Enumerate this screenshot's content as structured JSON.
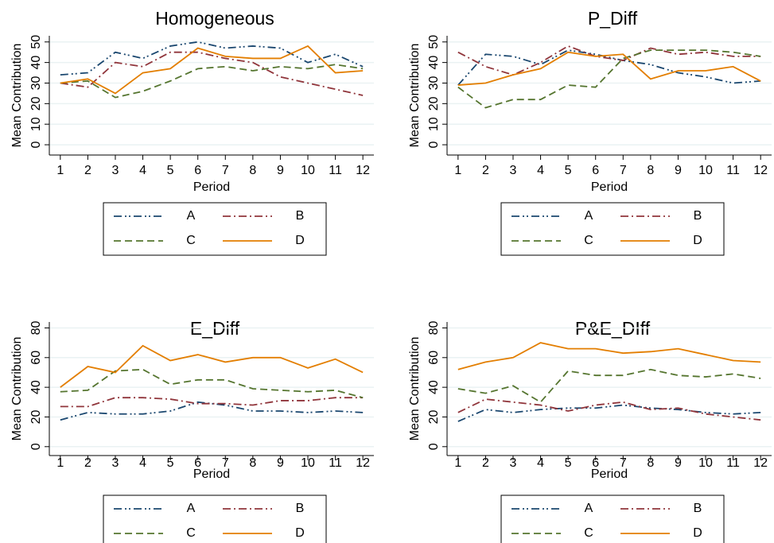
{
  "chart_data": [
    {
      "type": "line",
      "title": "Homogeneous",
      "x_label": "Period",
      "y_label": "Mean Contribution",
      "x": [
        1,
        2,
        3,
        4,
        5,
        6,
        7,
        8,
        9,
        10,
        11,
        12
      ],
      "xlim": [
        0.6,
        12.4
      ],
      "xticks": [
        1,
        2,
        3,
        4,
        5,
        6,
        7,
        8,
        9,
        10,
        11,
        12
      ],
      "ylim": [
        -5,
        53
      ],
      "yticks": [
        0,
        10,
        20,
        30,
        40,
        50
      ],
      "grid": true,
      "legend_position": "bottom",
      "series": [
        {
          "name": "A",
          "color": "#1a476f",
          "values": [
            34,
            35,
            45,
            42,
            48,
            50,
            47,
            48,
            47,
            40,
            44,
            38
          ]
        },
        {
          "name": "B",
          "color": "#90353b",
          "values": [
            30,
            28,
            40,
            38,
            45,
            45,
            42,
            40,
            33,
            30,
            27,
            24
          ]
        },
        {
          "name": "C",
          "color": "#55752f",
          "values": [
            30,
            31,
            23,
            26,
            31,
            37,
            38,
            36,
            38,
            37,
            39,
            37
          ]
        },
        {
          "name": "D",
          "color": "#e37e00",
          "values": [
            30,
            32,
            25,
            35,
            37,
            47,
            43,
            42,
            42,
            48,
            35,
            36
          ]
        }
      ]
    },
    {
      "type": "line",
      "title": "P_Diff",
      "x_label": "Period",
      "y_label": "Mean Contribution",
      "x": [
        1,
        2,
        3,
        4,
        5,
        6,
        7,
        8,
        9,
        10,
        11,
        12
      ],
      "xlim": [
        0.6,
        12.4
      ],
      "xticks": [
        1,
        2,
        3,
        4,
        5,
        6,
        7,
        8,
        9,
        10,
        11,
        12
      ],
      "ylim": [
        -5,
        53
      ],
      "yticks": [
        0,
        10,
        20,
        30,
        40,
        50
      ],
      "grid": true,
      "legend_position": "bottom",
      "series": [
        {
          "name": "A",
          "color": "#1a476f",
          "values": [
            29,
            44,
            43,
            39,
            46,
            44,
            41,
            39,
            35,
            33,
            30,
            31
          ]
        },
        {
          "name": "B",
          "color": "#90353b",
          "values": [
            45,
            38,
            34,
            40,
            48,
            43,
            41,
            47,
            44,
            45,
            43,
            43
          ]
        },
        {
          "name": "C",
          "color": "#55752f",
          "values": [
            28,
            18,
            22,
            22,
            29,
            28,
            42,
            46,
            46,
            46,
            45,
            43
          ]
        },
        {
          "name": "D",
          "color": "#e37e00",
          "values": [
            29,
            30,
            34,
            37,
            45,
            43,
            44,
            32,
            36,
            36,
            38,
            31
          ]
        }
      ]
    },
    {
      "type": "line",
      "title": "E_Diff",
      "x_label": "Period",
      "y_label": "Mean Contribution",
      "x": [
        1,
        2,
        3,
        4,
        5,
        6,
        7,
        8,
        9,
        10,
        11,
        12
      ],
      "xlim": [
        0.6,
        12.4
      ],
      "xticks": [
        1,
        2,
        3,
        4,
        5,
        6,
        7,
        8,
        9,
        10,
        11,
        12
      ],
      "ylim": [
        -6,
        84
      ],
      "yticks": [
        0,
        20,
        40,
        60,
        80
      ],
      "grid": true,
      "legend_position": "bottom",
      "series": [
        {
          "name": "A",
          "color": "#1a476f",
          "values": [
            18,
            23,
            22,
            22,
            24,
            30,
            28,
            24,
            24,
            23,
            24,
            23
          ]
        },
        {
          "name": "B",
          "color": "#90353b",
          "values": [
            27,
            27,
            33,
            33,
            32,
            29,
            29,
            28,
            31,
            31,
            33,
            33
          ]
        },
        {
          "name": "C",
          "color": "#55752f",
          "values": [
            37,
            38,
            51,
            52,
            42,
            45,
            45,
            39,
            38,
            37,
            38,
            33
          ]
        },
        {
          "name": "D",
          "color": "#e37e00",
          "values": [
            40,
            54,
            50,
            68,
            58,
            62,
            57,
            60,
            60,
            53,
            59,
            50
          ]
        }
      ]
    },
    {
      "type": "line",
      "title": "P&E_DIff",
      "x_label": "Period",
      "y_label": "Mean Contribution",
      "x": [
        1,
        2,
        3,
        4,
        5,
        6,
        7,
        8,
        9,
        10,
        11,
        12
      ],
      "xlim": [
        0.6,
        12.4
      ],
      "xticks": [
        1,
        2,
        3,
        4,
        5,
        6,
        7,
        8,
        9,
        10,
        11,
        12
      ],
      "ylim": [
        -6,
        84
      ],
      "yticks": [
        0,
        20,
        40,
        60,
        80
      ],
      "grid": true,
      "legend_position": "bottom",
      "series": [
        {
          "name": "A",
          "color": "#1a476f",
          "values": [
            17,
            25,
            23,
            25,
            26,
            26,
            28,
            26,
            25,
            23,
            22,
            23
          ]
        },
        {
          "name": "B",
          "color": "#90353b",
          "values": [
            23,
            32,
            30,
            28,
            24,
            28,
            30,
            25,
            26,
            22,
            20,
            18
          ]
        },
        {
          "name": "C",
          "color": "#55752f",
          "values": [
            39,
            36,
            41,
            30,
            51,
            48,
            48,
            52,
            48,
            47,
            49,
            46
          ]
        },
        {
          "name": "D",
          "color": "#e37e00",
          "values": [
            52,
            57,
            60,
            70,
            66,
            66,
            63,
            64,
            66,
            62,
            58,
            57
          ]
        }
      ]
    }
  ]
}
